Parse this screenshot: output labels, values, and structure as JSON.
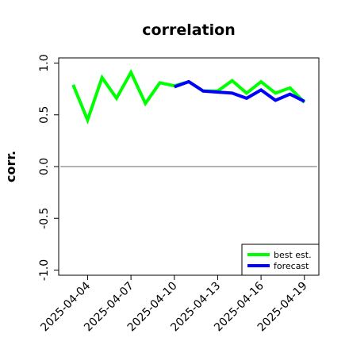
{
  "chart_data": {
    "type": "line",
    "title": "correlation",
    "xlabel": "",
    "ylabel": "corr.",
    "x": [
      "2025-04-03",
      "2025-04-04",
      "2025-04-05",
      "2025-04-06",
      "2025-04-07",
      "2025-04-08",
      "2025-04-09",
      "2025-04-10",
      "2025-04-11",
      "2025-04-12",
      "2025-04-13",
      "2025-04-14",
      "2025-04-15",
      "2025-04-16",
      "2025-04-17",
      "2025-04-18",
      "2025-04-19"
    ],
    "xticks": [
      "2025-04-04",
      "2025-04-07",
      "2025-04-10",
      "2025-04-13",
      "2025-04-16",
      "2025-04-19"
    ],
    "highlight_tick": "2025-04-10",
    "highlight_color": "#228b22",
    "xlim": [
      "2025-04-02",
      "2025-04-20"
    ],
    "ylim": [
      -1.05,
      1.05
    ],
    "yticks": [
      -1.0,
      -0.5,
      0.0,
      0.5,
      1.0
    ],
    "reference_line": 0.0,
    "legend_position": "bottom-right",
    "series": [
      {
        "name": "best est.",
        "color": "#00ff00",
        "x": [
          "2025-04-03",
          "2025-04-04",
          "2025-04-05",
          "2025-04-06",
          "2025-04-07",
          "2025-04-08",
          "2025-04-09",
          "2025-04-10",
          "2025-04-11",
          "2025-04-12",
          "2025-04-13",
          "2025-04-14",
          "2025-04-15",
          "2025-04-16",
          "2025-04-17",
          "2025-04-18",
          "2025-04-19"
        ],
        "values": [
          0.79,
          0.45,
          0.86,
          0.66,
          0.91,
          0.61,
          0.81,
          0.78,
          0.82,
          0.73,
          0.73,
          0.83,
          0.71,
          0.82,
          0.71,
          0.76,
          0.62
        ]
      },
      {
        "name": "forecast",
        "color": "#0000ff",
        "x": [
          "2025-04-10",
          "2025-04-11",
          "2025-04-12",
          "2025-04-13",
          "2025-04-14",
          "2025-04-15",
          "2025-04-16",
          "2025-04-17",
          "2025-04-18",
          "2025-04-19"
        ],
        "values": [
          0.77,
          0.82,
          0.73,
          0.72,
          0.71,
          0.66,
          0.74,
          0.64,
          0.7,
          0.63
        ]
      }
    ]
  }
}
